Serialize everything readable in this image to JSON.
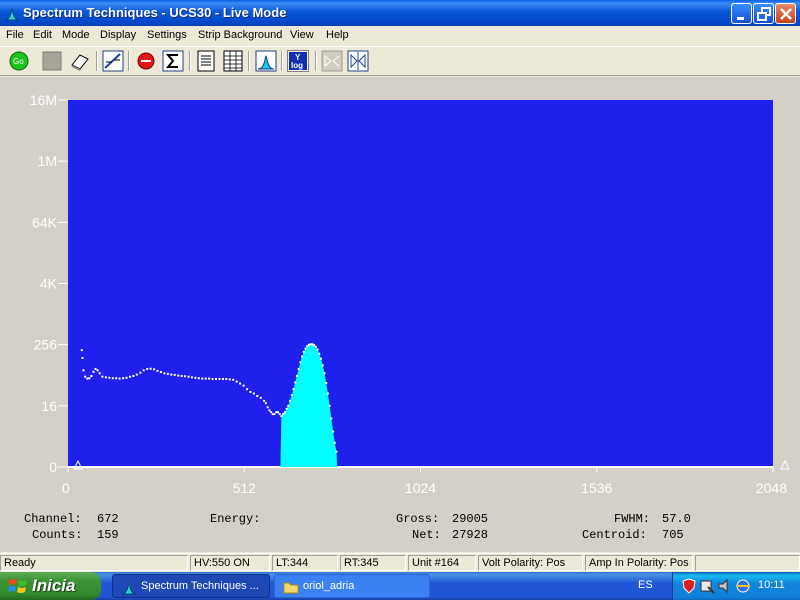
{
  "window": {
    "title": "Spectrum Techniques - UCS30 - Live Mode",
    "buttons": [
      "minimize",
      "restore",
      "close"
    ]
  },
  "menu": [
    "File",
    "Edit",
    "Mode",
    "Display",
    "Settings",
    "Strip Background",
    "View",
    "Help"
  ],
  "toolbar": {
    "icons": [
      "go-icon",
      "stop-icon",
      "eraser-icon",
      "calibrate-icon",
      "roi-icon",
      "sum-icon",
      "report-icon",
      "table-icon",
      "peak-icon",
      "log-scale-icon",
      "previous-peak-icon",
      "next-peak-icon"
    ],
    "log_label_top": "Y",
    "log_label_bottom": "log"
  },
  "chart_data": {
    "type": "scatter",
    "title": "",
    "xlabel": "",
    "ylabel": "",
    "y_scale": "log",
    "x_ticks": [
      "0",
      "512",
      "1024",
      "1536",
      "2048"
    ],
    "y_ticks": [
      "16M",
      "1M",
      "64K",
      "4K",
      "256",
      "16",
      "0"
    ],
    "xlim": [
      0,
      2048
    ],
    "ylim": [
      1,
      16777216
    ],
    "grid": false,
    "colors": {
      "background": "#2020ec",
      "points": "#ffffff",
      "roi": "#00ffff",
      "frame": "#d4d0c8"
    },
    "roi": {
      "start": 617,
      "end": 782
    },
    "points": [
      [
        40,
        200
      ],
      [
        42,
        140
      ],
      [
        45,
        80
      ],
      [
        50,
        60
      ],
      [
        56,
        55
      ],
      [
        62,
        56
      ],
      [
        68,
        62
      ],
      [
        74,
        75
      ],
      [
        80,
        85
      ],
      [
        86,
        80
      ],
      [
        92,
        70
      ],
      [
        100,
        60
      ],
      [
        110,
        58
      ],
      [
        120,
        57
      ],
      [
        130,
        56
      ],
      [
        140,
        56
      ],
      [
        150,
        55
      ],
      [
        160,
        56
      ],
      [
        170,
        57
      ],
      [
        180,
        60
      ],
      [
        190,
        62
      ],
      [
        200,
        66
      ],
      [
        210,
        72
      ],
      [
        220,
        80
      ],
      [
        230,
        85
      ],
      [
        240,
        86
      ],
      [
        250,
        84
      ],
      [
        260,
        78
      ],
      [
        270,
        74
      ],
      [
        280,
        70
      ],
      [
        290,
        68
      ],
      [
        300,
        66
      ],
      [
        310,
        65
      ],
      [
        320,
        63
      ],
      [
        330,
        62
      ],
      [
        340,
        61
      ],
      [
        350,
        60
      ],
      [
        360,
        58
      ],
      [
        370,
        57
      ],
      [
        380,
        56
      ],
      [
        390,
        55
      ],
      [
        400,
        55
      ],
      [
        410,
        55
      ],
      [
        420,
        54
      ],
      [
        430,
        54
      ],
      [
        440,
        54
      ],
      [
        450,
        54
      ],
      [
        460,
        54
      ],
      [
        470,
        53
      ],
      [
        480,
        52
      ],
      [
        490,
        48
      ],
      [
        500,
        44
      ],
      [
        510,
        40
      ],
      [
        520,
        34
      ],
      [
        530,
        30
      ],
      [
        540,
        28
      ],
      [
        550,
        25
      ],
      [
        560,
        23
      ],
      [
        570,
        20
      ],
      [
        575,
        18
      ],
      [
        580,
        15
      ],
      [
        585,
        13
      ],
      [
        590,
        12
      ],
      [
        595,
        11
      ],
      [
        600,
        11
      ],
      [
        605,
        12
      ],
      [
        610,
        12
      ],
      [
        615,
        11
      ],
      [
        620,
        10
      ],
      [
        625,
        11
      ],
      [
        630,
        12
      ],
      [
        635,
        14
      ],
      [
        640,
        16
      ],
      [
        645,
        20
      ],
      [
        650,
        26
      ],
      [
        655,
        34
      ],
      [
        660,
        46
      ],
      [
        665,
        62
      ],
      [
        670,
        85
      ],
      [
        675,
        115
      ],
      [
        680,
        150
      ],
      [
        685,
        185
      ],
      [
        690,
        215
      ],
      [
        695,
        240
      ],
      [
        700,
        255
      ],
      [
        705,
        262
      ],
      [
        710,
        260
      ],
      [
        715,
        250
      ],
      [
        720,
        232
      ],
      [
        725,
        205
      ],
      [
        730,
        170
      ],
      [
        735,
        135
      ],
      [
        740,
        100
      ],
      [
        745,
        70
      ],
      [
        750,
        45
      ],
      [
        755,
        28
      ],
      [
        760,
        16
      ],
      [
        765,
        9
      ],
      [
        770,
        5
      ],
      [
        775,
        3
      ],
      [
        780,
        2
      ]
    ]
  },
  "readout": {
    "channel_label": "Channel:",
    "channel_value": "672",
    "counts_label": "Counts:",
    "counts_value": "159",
    "energy_label": "Energy:",
    "energy_value": "",
    "gross_label": "Gross:",
    "gross_value": "29005",
    "net_label": "Net:",
    "net_value": "27928",
    "fwhm_label": "FWHM:",
    "fwhm_value": "57.0",
    "centroid_label": "Centroid:",
    "centroid_value": "705"
  },
  "status": {
    "ready": "Ready",
    "hv": "HV:550 ON",
    "lt": "LT:344",
    "rt": "RT:345",
    "unit": "Unit #164",
    "volt_polarity": "Volt Polarity: Pos",
    "amp_polarity": "Amp In Polarity: Pos"
  },
  "taskbar": {
    "start": "Inicia",
    "tasks": [
      "Spectrum Techniques ...",
      "oriol_adria"
    ],
    "lang": "ES",
    "clock": "10:11"
  }
}
